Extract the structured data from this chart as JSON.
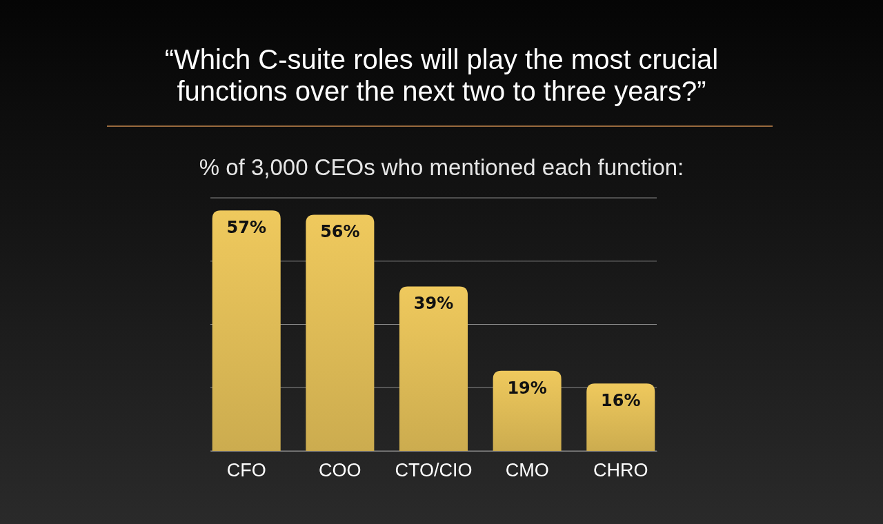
{
  "chart_data": {
    "type": "bar",
    "title": "“Which C-suite roles will play the most crucial functions over the next two to three years?”",
    "subtitle": "% of 3,000 CEOs who mentioned each function:",
    "categories": [
      "CFO",
      "COO",
      "CTO/CIO",
      "CMO",
      "CHRO"
    ],
    "values": [
      57,
      56,
      39,
      19,
      16
    ],
    "value_labels": [
      "57%",
      "56%",
      "39%",
      "19%",
      "16%"
    ],
    "color": "#e3bf58",
    "ylim": [
      0,
      60
    ],
    "yticks": [
      {
        "value": 0,
        "label": null
      },
      {
        "value": 15,
        "label": null
      },
      {
        "value": 30,
        "label": null
      },
      {
        "value": 45,
        "label": null
      },
      {
        "value": 60,
        "label": null
      }
    ],
    "grid": "y",
    "tick_labels": "x"
  }
}
